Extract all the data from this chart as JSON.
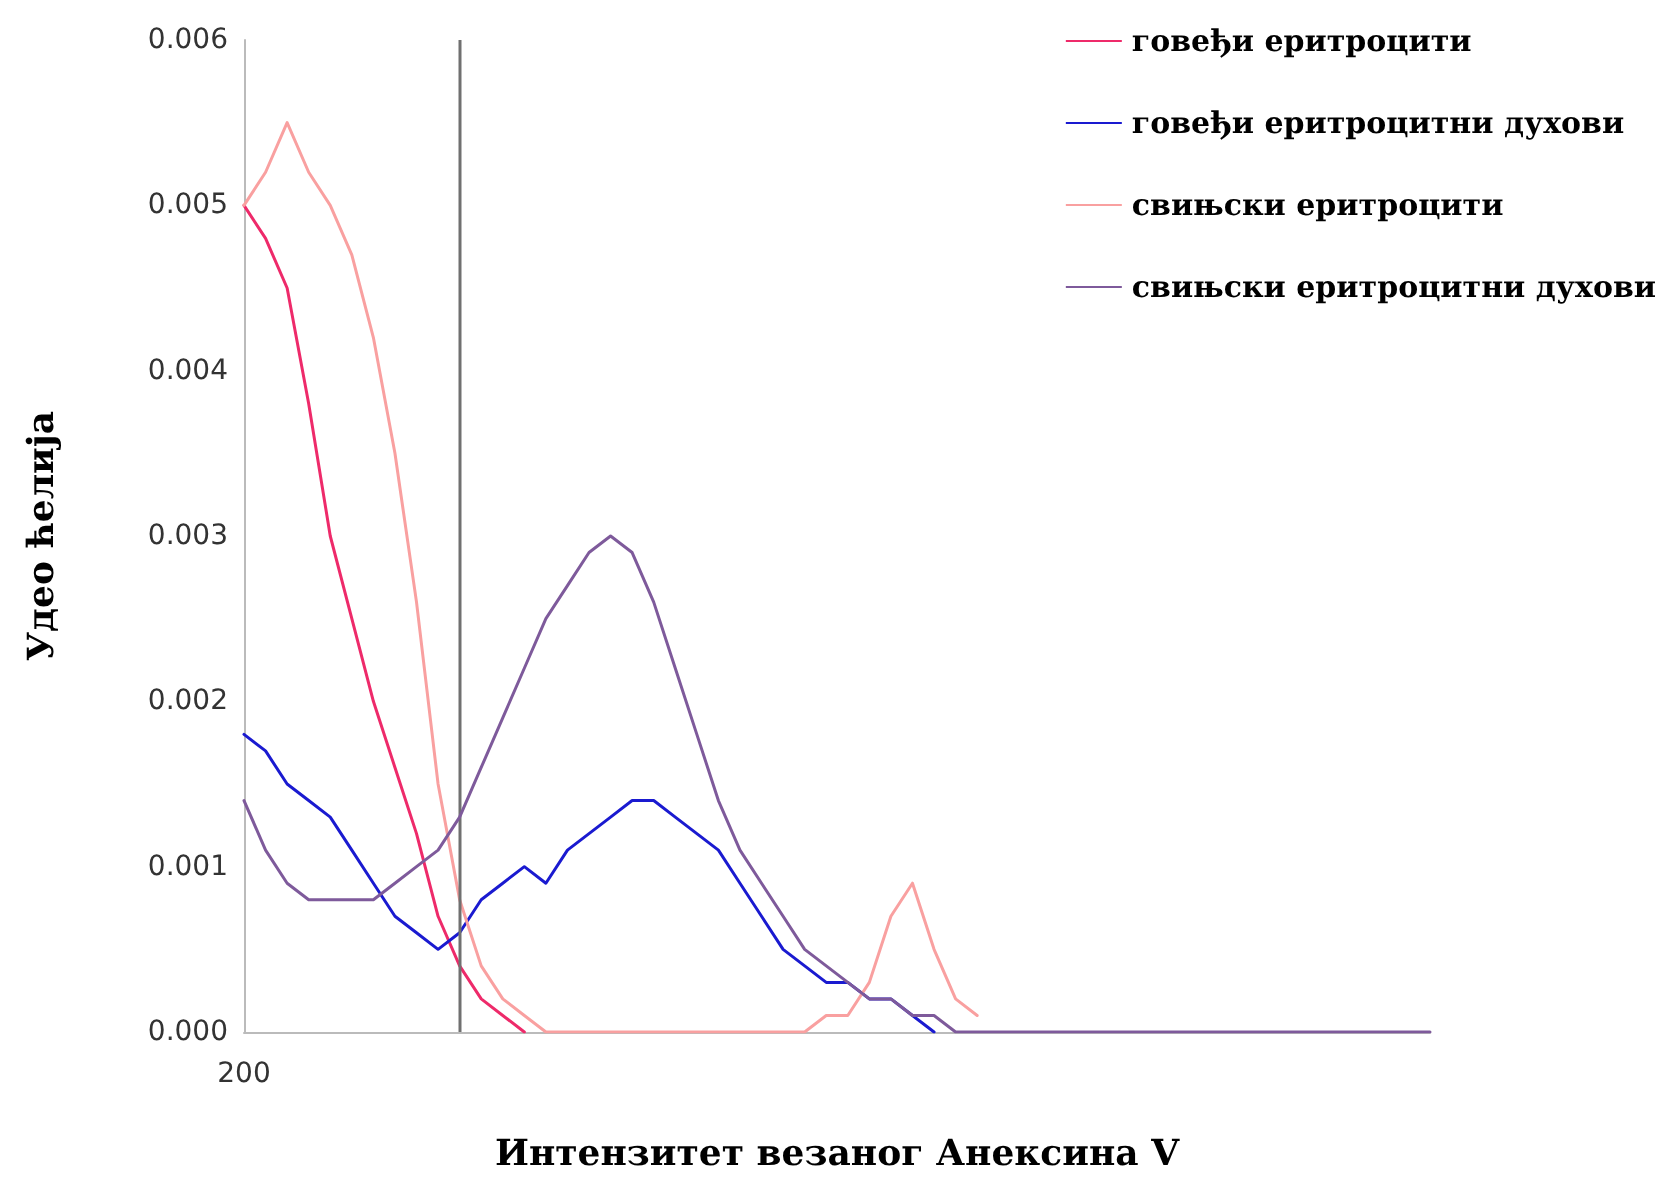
{
  "chart_data": {
    "type": "line",
    "xlabel": "Интензитет везаног Анексина V",
    "ylabel": "Удео ћелија",
    "categories": [
      "200",
      null,
      null,
      null,
      null,
      null,
      null,
      null,
      null,
      null,
      null,
      null,
      null,
      null,
      null,
      null,
      null,
      null,
      null,
      null,
      null,
      null,
      null,
      null,
      null,
      null,
      null,
      null,
      null,
      null,
      null,
      null,
      null,
      null,
      null,
      null,
      null,
      null,
      null,
      null,
      null,
      null,
      null,
      null,
      null,
      null,
      null,
      null,
      null,
      null,
      null,
      null,
      null,
      null,
      null,
      null
    ],
    "series": [
      {
        "name": "говеђи еритроцити",
        "color": "#ee2a6a",
        "values": [
          0.005,
          0.0048,
          0.0045,
          0.0038,
          0.003,
          0.0025,
          0.002,
          0.0016,
          0.0012,
          0.0007,
          0.0004,
          0.0002,
          0.0001,
          0,
          null,
          null,
          null,
          null,
          null,
          null,
          null,
          null,
          null,
          null,
          null,
          null,
          null,
          null,
          null,
          null,
          null,
          null,
          null,
          null,
          null,
          null,
          null,
          null,
          null,
          null,
          null,
          null,
          null,
          null,
          null,
          null,
          null,
          null,
          null,
          null,
          null,
          null,
          null,
          null,
          null,
          null
        ]
      },
      {
        "name": "говеђи еритроцитни духови",
        "color": "#1a1ad0",
        "values": [
          0.0018,
          0.0017,
          0.0015,
          0.0014,
          0.0013,
          0.0011,
          0.0009,
          0.0007,
          0.0006,
          0.0005,
          0.0006,
          0.0008,
          0.0009,
          0.001,
          0.0009,
          0.0011,
          0.0012,
          0.0013,
          0.0014,
          0.0014,
          0.0013,
          0.0012,
          0.0011,
          0.0009,
          0.0007,
          0.0005,
          0.0004,
          0.0003,
          0.0003,
          0.0002,
          0.0002,
          0.0001,
          0,
          null,
          null,
          null,
          null,
          null,
          null,
          null,
          null,
          null,
          null,
          null,
          null,
          null,
          null,
          null,
          null,
          null,
          null,
          null,
          null,
          null,
          null,
          null
        ]
      },
      {
        "name": "свињски еритроцити",
        "color": "#f9a0a0",
        "values": [
          0.005,
          0.0052,
          0.0055,
          0.0052,
          0.005,
          0.0047,
          0.0042,
          0.0035,
          0.0026,
          0.0015,
          0.0008,
          0.0004,
          0.0002,
          0.0001,
          0,
          0,
          0,
          0,
          0,
          0,
          0,
          0,
          0,
          0,
          0,
          0,
          0,
          0.0001,
          0.0001,
          0.0003,
          0.0007,
          0.0009,
          0.0005,
          0.0002,
          0.0001,
          null,
          null,
          null,
          null,
          null,
          null,
          null,
          null,
          null,
          null,
          null,
          null,
          null,
          null,
          null,
          null,
          null,
          null,
          null,
          null,
          null
        ]
      },
      {
        "name": "свињски еритроцитни духови",
        "color": "#7e5a9b",
        "values": [
          0.0014,
          0.0011,
          0.0009,
          0.0008,
          0.0008,
          0.0008,
          0.0008,
          0.0009,
          0.001,
          0.0011,
          0.0013,
          0.0016,
          0.0019,
          0.0022,
          0.0025,
          0.0027,
          0.0029,
          0.003,
          0.0029,
          0.0026,
          0.0022,
          0.0018,
          0.0014,
          0.0011,
          0.0009,
          0.0007,
          0.0005,
          0.0004,
          0.0003,
          0.0002,
          0.0002,
          0.0001,
          0.0001,
          0,
          0,
          0,
          0,
          0,
          0,
          0,
          0,
          0,
          0,
          0,
          0,
          0,
          0,
          0,
          0,
          0,
          0,
          0,
          0,
          0,
          0,
          0
        ]
      }
    ],
    "ylim": [
      0,
      0.006
    ],
    "yticks": [
      {
        "value": 0,
        "label": "0.000"
      },
      {
        "value": 0.001,
        "label": "0.001"
      },
      {
        "value": 0.002,
        "label": "0.002"
      },
      {
        "value": 0.003,
        "label": "0.003"
      },
      {
        "value": 0.004,
        "label": "0.004"
      },
      {
        "value": 0.005,
        "label": "0.005"
      },
      {
        "value": 0.006,
        "label": "0.006"
      }
    ],
    "grid": false,
    "legend": "top right",
    "marker": "none",
    "line_style": "solid"
  }
}
